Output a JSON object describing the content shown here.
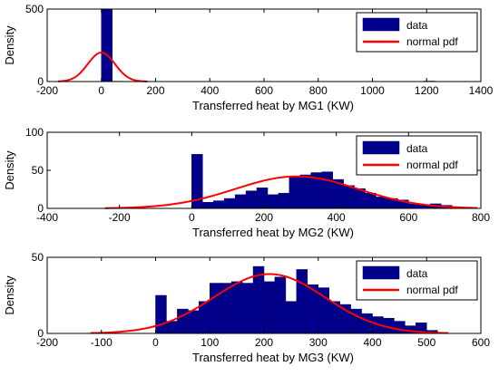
{
  "colors": {
    "bar": "#00008b",
    "bar_edge": "#000066",
    "pdf": "#ff0000",
    "axis": "#000000"
  },
  "chart_data": [
    {
      "type": "bar",
      "xlabel": "Transferred heat by MG1 (KW)",
      "ylabel": "Density",
      "xlim": [
        -200,
        1400
      ],
      "ylim": [
        0,
        500
      ],
      "xticks": [
        -200,
        0,
        200,
        400,
        600,
        800,
        1000,
        1200,
        1400
      ],
      "yticks": [
        0,
        500
      ],
      "legend": {
        "position": "top-right",
        "entries": [
          "data",
          "normal pdf"
        ]
      },
      "bins": [
        {
          "x0": 0,
          "x1": 40,
          "y": 500
        },
        {
          "x0": 40,
          "x1": 80,
          "y": 2
        },
        {
          "x0": 80,
          "x1": 120,
          "y": 1
        },
        {
          "x0": 1190,
          "x1": 1230,
          "y": 3
        }
      ],
      "pdf": {
        "mean": 0,
        "std": 50,
        "peak": 200,
        "range": [
          -160,
          170
        ]
      }
    },
    {
      "type": "bar",
      "xlabel": "Transferred heat by MG2 (KW)",
      "ylabel": "Density",
      "xlim": [
        -400,
        800
      ],
      "ylim": [
        0,
        100
      ],
      "xticks": [
        -400,
        -200,
        0,
        200,
        400,
        600,
        800
      ],
      "yticks": [
        0,
        50,
        100
      ],
      "legend": {
        "position": "top-right",
        "entries": [
          "data",
          "normal pdf"
        ]
      },
      "bins": [
        {
          "x0": 0,
          "x1": 30,
          "y": 71
        },
        {
          "x0": 30,
          "x1": 60,
          "y": 8
        },
        {
          "x0": 60,
          "x1": 90,
          "y": 10
        },
        {
          "x0": 90,
          "x1": 120,
          "y": 13
        },
        {
          "x0": 120,
          "x1": 150,
          "y": 18
        },
        {
          "x0": 150,
          "x1": 180,
          "y": 23
        },
        {
          "x0": 180,
          "x1": 210,
          "y": 27
        },
        {
          "x0": 210,
          "x1": 240,
          "y": 18
        },
        {
          "x0": 240,
          "x1": 270,
          "y": 20
        },
        {
          "x0": 270,
          "x1": 300,
          "y": 42
        },
        {
          "x0": 300,
          "x1": 330,
          "y": 44
        },
        {
          "x0": 330,
          "x1": 360,
          "y": 47
        },
        {
          "x0": 360,
          "x1": 390,
          "y": 48
        },
        {
          "x0": 390,
          "x1": 420,
          "y": 38
        },
        {
          "x0": 420,
          "x1": 450,
          "y": 30
        },
        {
          "x0": 450,
          "x1": 480,
          "y": 26
        },
        {
          "x0": 480,
          "x1": 510,
          "y": 20
        },
        {
          "x0": 510,
          "x1": 540,
          "y": 15
        },
        {
          "x0": 540,
          "x1": 570,
          "y": 13
        },
        {
          "x0": 570,
          "x1": 600,
          "y": 11
        },
        {
          "x0": 600,
          "x1": 630,
          "y": 6
        },
        {
          "x0": 630,
          "x1": 660,
          "y": 5
        },
        {
          "x0": 660,
          "x1": 690,
          "y": 6
        },
        {
          "x0": 690,
          "x1": 720,
          "y": 4
        }
      ],
      "pdf": {
        "mean": 290,
        "std": 170,
        "peak": 42,
        "range": [
          -240,
          790
        ]
      }
    },
    {
      "type": "bar",
      "xlabel": "Transferred heat by MG3 (KW)",
      "ylabel": "Density",
      "xlim": [
        -200,
        600
      ],
      "ylim": [
        0,
        50
      ],
      "xticks": [
        -200,
        -100,
        0,
        100,
        200,
        300,
        400,
        500,
        600
      ],
      "yticks": [
        0,
        50
      ],
      "legend": {
        "position": "top-right",
        "entries": [
          "data",
          "normal pdf"
        ]
      },
      "bins": [
        {
          "x0": 0,
          "x1": 20,
          "y": 25
        },
        {
          "x0": 20,
          "x1": 40,
          "y": 8
        },
        {
          "x0": 40,
          "x1": 60,
          "y": 16
        },
        {
          "x0": 60,
          "x1": 80,
          "y": 15
        },
        {
          "x0": 80,
          "x1": 100,
          "y": 21
        },
        {
          "x0": 100,
          "x1": 120,
          "y": 33
        },
        {
          "x0": 120,
          "x1": 140,
          "y": 33
        },
        {
          "x0": 140,
          "x1": 160,
          "y": 34
        },
        {
          "x0": 160,
          "x1": 180,
          "y": 33
        },
        {
          "x0": 180,
          "x1": 200,
          "y": 44
        },
        {
          "x0": 200,
          "x1": 220,
          "y": 34
        },
        {
          "x0": 220,
          "x1": 240,
          "y": 37
        },
        {
          "x0": 240,
          "x1": 260,
          "y": 21
        },
        {
          "x0": 260,
          "x1": 280,
          "y": 42
        },
        {
          "x0": 280,
          "x1": 300,
          "y": 32
        },
        {
          "x0": 300,
          "x1": 320,
          "y": 30
        },
        {
          "x0": 320,
          "x1": 340,
          "y": 21
        },
        {
          "x0": 340,
          "x1": 360,
          "y": 19
        },
        {
          "x0": 360,
          "x1": 380,
          "y": 16
        },
        {
          "x0": 380,
          "x1": 400,
          "y": 13
        },
        {
          "x0": 400,
          "x1": 420,
          "y": 11
        },
        {
          "x0": 420,
          "x1": 440,
          "y": 10
        },
        {
          "x0": 440,
          "x1": 460,
          "y": 8
        },
        {
          "x0": 460,
          "x1": 480,
          "y": 5
        },
        {
          "x0": 480,
          "x1": 500,
          "y": 7
        },
        {
          "x0": 500,
          "x1": 520,
          "y": 2
        }
      ],
      "pdf": {
        "mean": 210,
        "std": 103,
        "peak": 39,
        "range": [
          -120,
          540
        ]
      }
    }
  ]
}
